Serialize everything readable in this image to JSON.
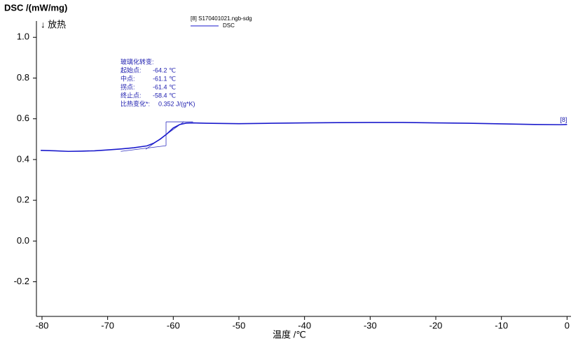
{
  "chart_data": {
    "type": "line",
    "y_label": "DSC /(mW/mg)",
    "direction_label": "↓ 放热",
    "x_label": "温度 /℃",
    "legend_title": "[8]  S170401021.ngb-sdg",
    "curve_label": "[8]",
    "x": [
      -80.2,
      -78,
      -76,
      -74,
      -72,
      -70,
      -68,
      -66,
      -64,
      -63,
      -62,
      -61,
      -60,
      -59,
      -58,
      -57,
      -55,
      -50,
      -45,
      -40,
      -35,
      -30,
      -25,
      -20,
      -15,
      -10,
      -5,
      -1,
      0
    ],
    "series": [
      {
        "name": "DSC",
        "color": "#1a1acc",
        "values": [
          0.445,
          0.443,
          0.44,
          0.441,
          0.443,
          0.447,
          0.452,
          0.458,
          0.467,
          0.48,
          0.5,
          0.525,
          0.555,
          0.572,
          0.579,
          0.58,
          0.578,
          0.576,
          0.578,
          0.58,
          0.581,
          0.582,
          0.582,
          0.58,
          0.578,
          0.575,
          0.572,
          0.571,
          0.572
        ]
      }
    ],
    "construction_lines": [
      {
        "x": [
          -61.1,
          -61.1
        ],
        "y": [
          0.468,
          0.585
        ]
      },
      {
        "x": [
          -68,
          -61.1
        ],
        "y": [
          0.44,
          0.468
        ]
      },
      {
        "x": [
          -61.1,
          -57
        ],
        "y": [
          0.585,
          0.585
        ]
      },
      {
        "x": [
          -64.2,
          -58.4
        ],
        "y": [
          0.45,
          0.585
        ]
      }
    ],
    "annotation": {
      "title": "玻璃化转变:",
      "rows": [
        [
          "起始点:",
          "-64.2 ℃"
        ],
        [
          "中点:",
          "-61.1 ℃"
        ],
        [
          "拐点:",
          "-61.4 ℃"
        ],
        [
          "终止点:",
          "-58.4 ℃"
        ],
        [
          "比热变化*:",
          "0.352 J/(g*K)"
        ]
      ]
    },
    "xlim": [
      -80.85,
      0.6
    ],
    "ylim": [
      -0.37,
      1.08
    ],
    "xticks": [
      -80,
      -70,
      -60,
      -50,
      -40,
      -30,
      -20,
      -10,
      0
    ],
    "yticks": [
      {
        "value": -0.2,
        "label": "-0.2"
      },
      {
        "value": 0.0,
        "label": "0.0"
      },
      {
        "value": 0.2,
        "label": "0.2"
      },
      {
        "value": 0.4,
        "label": "0.4"
      },
      {
        "value": 0.6,
        "label": "0.6"
      },
      {
        "value": 0.8,
        "label": "0.8"
      },
      {
        "value": 1.0,
        "label": "1.0"
      }
    ]
  }
}
